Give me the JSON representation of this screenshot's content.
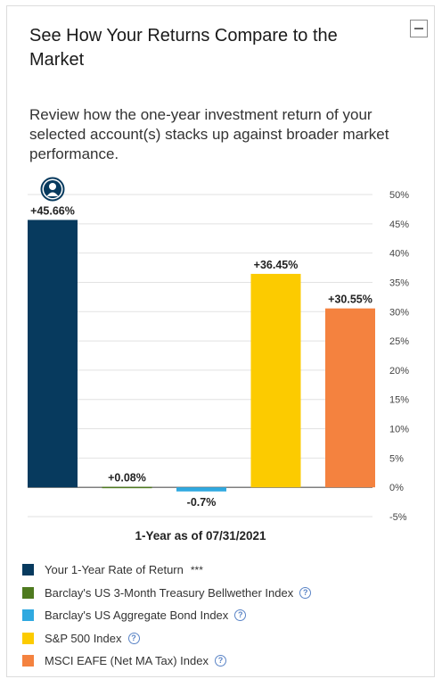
{
  "card": {
    "title": "See How Your Returns Compare to the Market",
    "description": "Review how the one-year investment return of your selected account(s) stacks up against broader market performance."
  },
  "chart_data": {
    "type": "bar",
    "title": "",
    "xlabel": "1-Year as of 07/31/2021",
    "ylabel": "",
    "ylim": [
      -5,
      50
    ],
    "yticks": [
      50,
      45,
      40,
      35,
      30,
      25,
      20,
      15,
      10,
      5,
      0,
      -5
    ],
    "ytick_labels": [
      "50%",
      "45%",
      "40%",
      "35%",
      "30%",
      "25%",
      "20%",
      "15%",
      "10%",
      "5%",
      "0%",
      "-5%"
    ],
    "grid": true,
    "legend_position": "bottom",
    "categories": [
      "Your 1-Year Rate of Return",
      "Barclay's US 3-Month Treasury Bellwether Index",
      "Barclay's US Aggregate Bond Index",
      "S&P 500 Index",
      "MSCI EAFE (Net MA Tax) Index"
    ],
    "values": [
      45.66,
      0.08,
      -0.7,
      36.45,
      30.55
    ],
    "data_labels": [
      "+45.66%",
      "+0.08%",
      "-0.7%",
      "+36.45%",
      "+30.55%"
    ],
    "colors": [
      "#073a5e",
      "#4e7a1f",
      "#2fa9e0",
      "#fccb00",
      "#f4823f"
    ]
  },
  "legend": {
    "items": [
      {
        "label": "Your 1-Year Rate of Return",
        "note": "***",
        "color": "#073a5e",
        "help": false
      },
      {
        "label": "Barclay's US 3-Month Treasury Bellwether Index",
        "note": "",
        "color": "#4e7a1f",
        "help": true
      },
      {
        "label": "Barclay's US Aggregate Bond Index",
        "note": "",
        "color": "#2fa9e0",
        "help": true
      },
      {
        "label": "S&P 500 Index",
        "note": "",
        "color": "#fccb00",
        "help": true
      },
      {
        "label": "MSCI EAFE (Net MA Tax) Index",
        "note": "",
        "color": "#f4823f",
        "help": true
      }
    ],
    "help_glyph": "?"
  },
  "icons": {
    "user_marker": "user-avatar-icon",
    "collapse": "minus-icon",
    "help": "question-circle-icon"
  }
}
